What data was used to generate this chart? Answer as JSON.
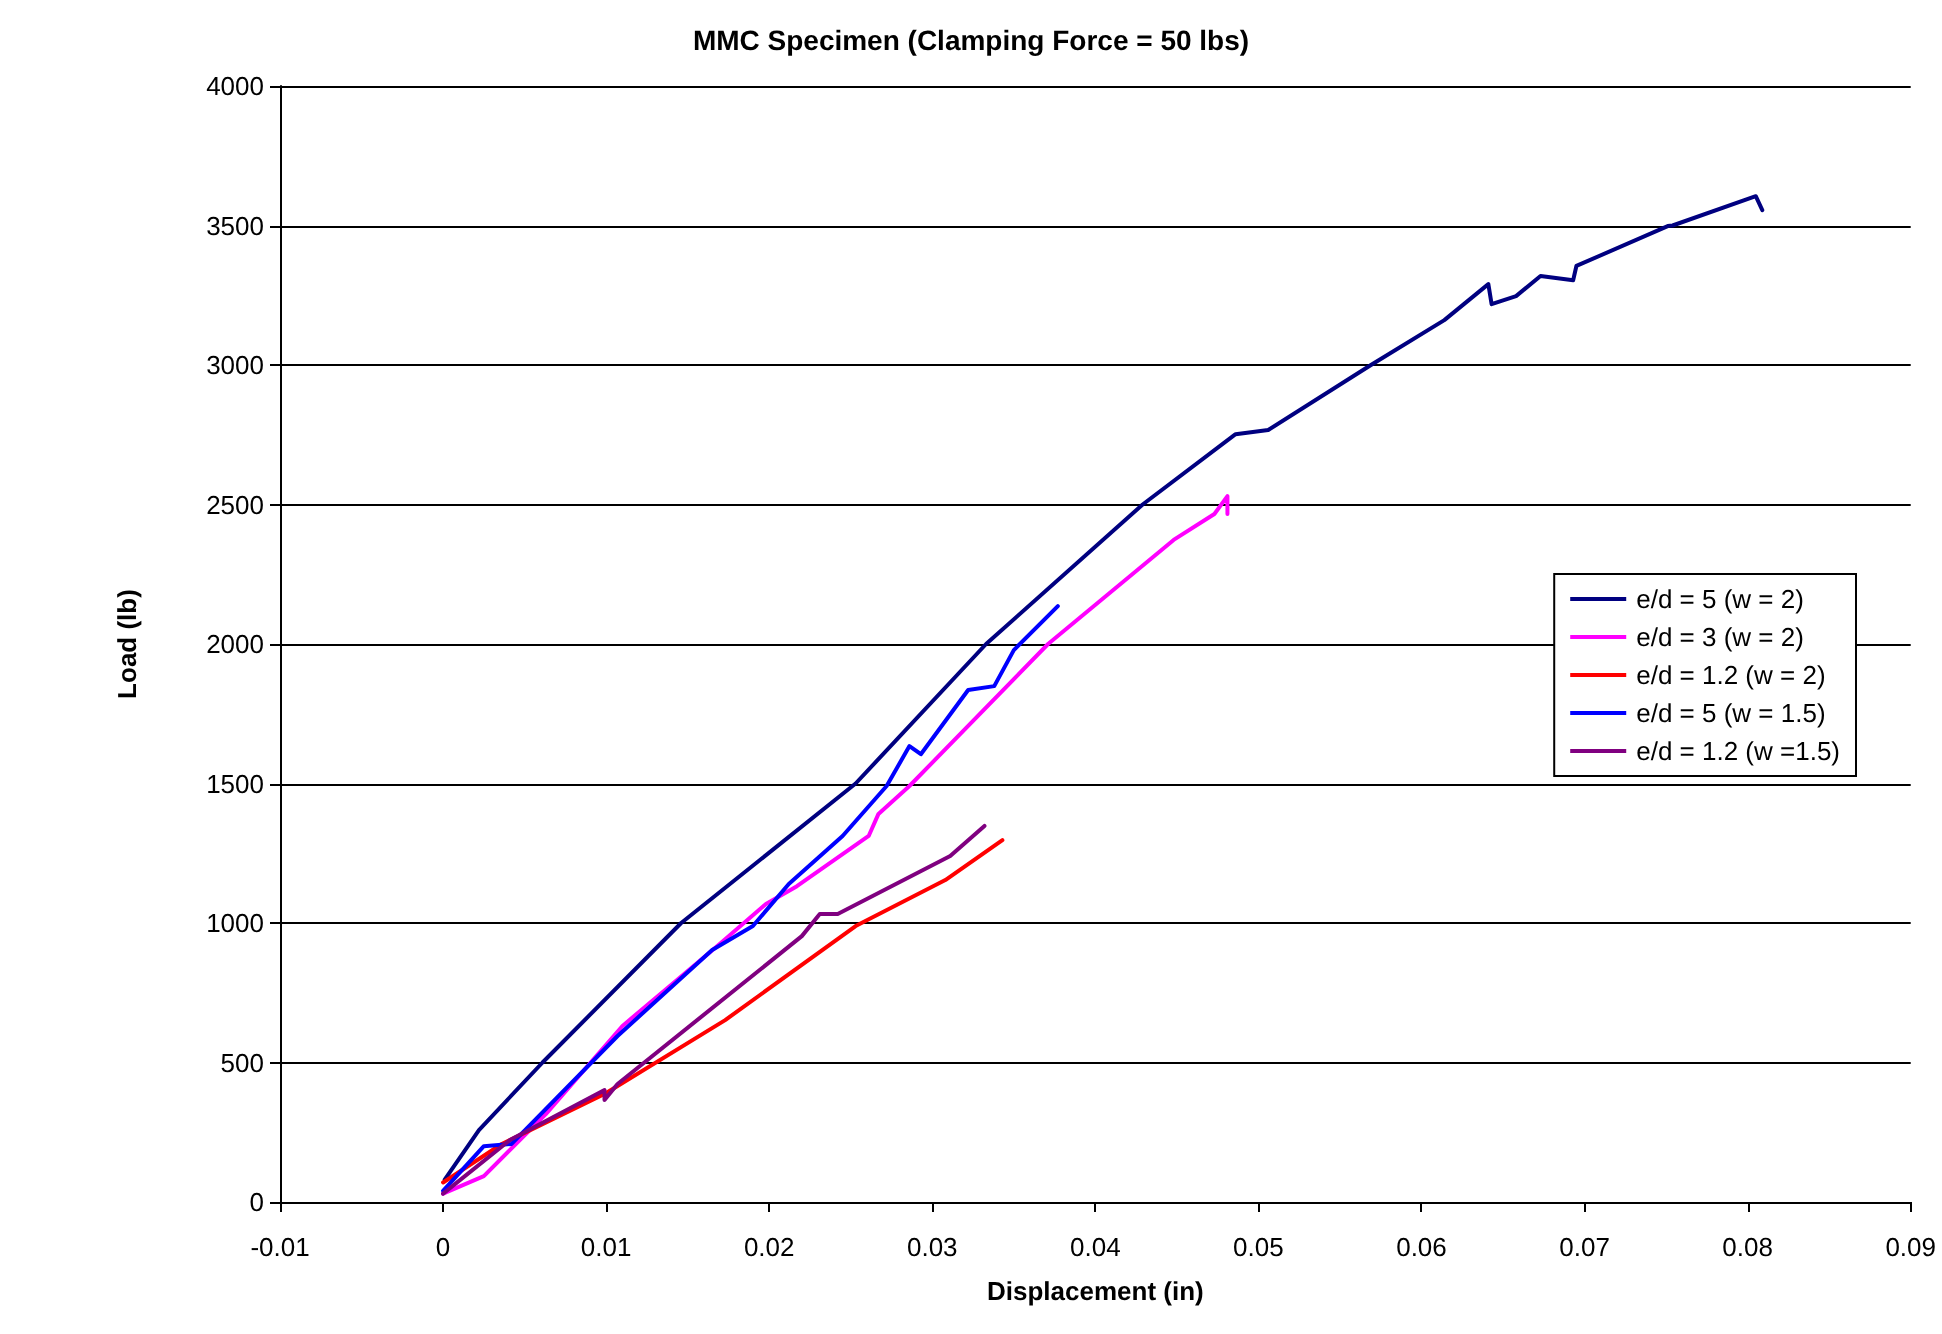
{
  "chart_data": {
    "type": "line",
    "title": "MMC Specimen (Clamping Force = 50 lbs)",
    "xlabel": "Displacement (in)",
    "ylabel": "Load (lb)",
    "xlim": [
      -0.01,
      0.09
    ],
    "xticks": [
      -0.01,
      0,
      0.01,
      0.02,
      0.03,
      0.04,
      0.05,
      0.06,
      0.07,
      0.08,
      0.09
    ],
    "ylim": [
      0,
      4000
    ],
    "yticks": [
      0,
      500,
      1000,
      1500,
      2000,
      2500,
      3000,
      3500,
      4000
    ],
    "grid": "y",
    "legend": "right",
    "marker": "none",
    "line_style": "solid",
    "series": [
      {
        "name": "e/d = 5 (w = 2)",
        "color": "#000080",
        "x": [
          0.0001,
          0.0022,
          0.0061,
          0.0146,
          0.0253,
          0.0333,
          0.0429,
          0.0486,
          0.0506,
          0.0569,
          0.0614,
          0.0641,
          0.0643,
          0.0658,
          0.0673,
          0.0693,
          0.0695,
          0.0751,
          0.0754,
          0.0805,
          0.0809
        ],
        "values": [
          80,
          258,
          500,
          1000,
          1500,
          2000,
          2500,
          2752,
          2767,
          3000,
          3161,
          3290,
          3218,
          3247,
          3319,
          3304,
          3355,
          3498,
          3500,
          3605,
          3555
        ]
      },
      {
        "name": "e/d = 3 (w = 2)",
        "color": "#ff00ff",
        "x": [
          0,
          0.0025,
          0.0063,
          0.011,
          0.0168,
          0.0198,
          0.0217,
          0.0261,
          0.0267,
          0.0286,
          0.0371,
          0.0448,
          0.0473,
          0.0481,
          0.0481
        ],
        "values": [
          30,
          93,
          315,
          631,
          917,
          1068,
          1132,
          1312,
          1391,
          1491,
          2000,
          2373,
          2466,
          2530,
          2466
        ]
      },
      {
        "name": "e/d = 1.2 (w = 2)",
        "color": "#ff0000",
        "x": [
          0,
          0.0036,
          0.0099,
          0.0173,
          0.0253,
          0.0308,
          0.0343
        ],
        "values": [
          70,
          208,
          387,
          652,
          989,
          1154,
          1297
        ]
      },
      {
        "name": "e/d = 5 (w = 1.5)",
        "color": "#0000ff",
        "x": [
          0,
          0.0025,
          0.0042,
          0.0107,
          0.0165,
          0.019,
          0.0212,
          0.0245,
          0.0272,
          0.0286,
          0.0293,
          0.0322,
          0.0338,
          0.035,
          0.0377
        ],
        "values": [
          40,
          200,
          208,
          595,
          903,
          989,
          1140,
          1312,
          1491,
          1634,
          1605,
          1835,
          1849,
          1978,
          2136
        ]
      },
      {
        "name": "e/d = 1.2 (w =1.5)",
        "color": "#800080",
        "x": [
          0,
          0.0041,
          0.0099,
          0.0099,
          0.0107,
          0.022,
          0.0231,
          0.0242,
          0.0311,
          0.0332
        ],
        "values": [
          30,
          222,
          401,
          366,
          423,
          953,
          1032,
          1032,
          1240,
          1348
        ]
      }
    ]
  }
}
